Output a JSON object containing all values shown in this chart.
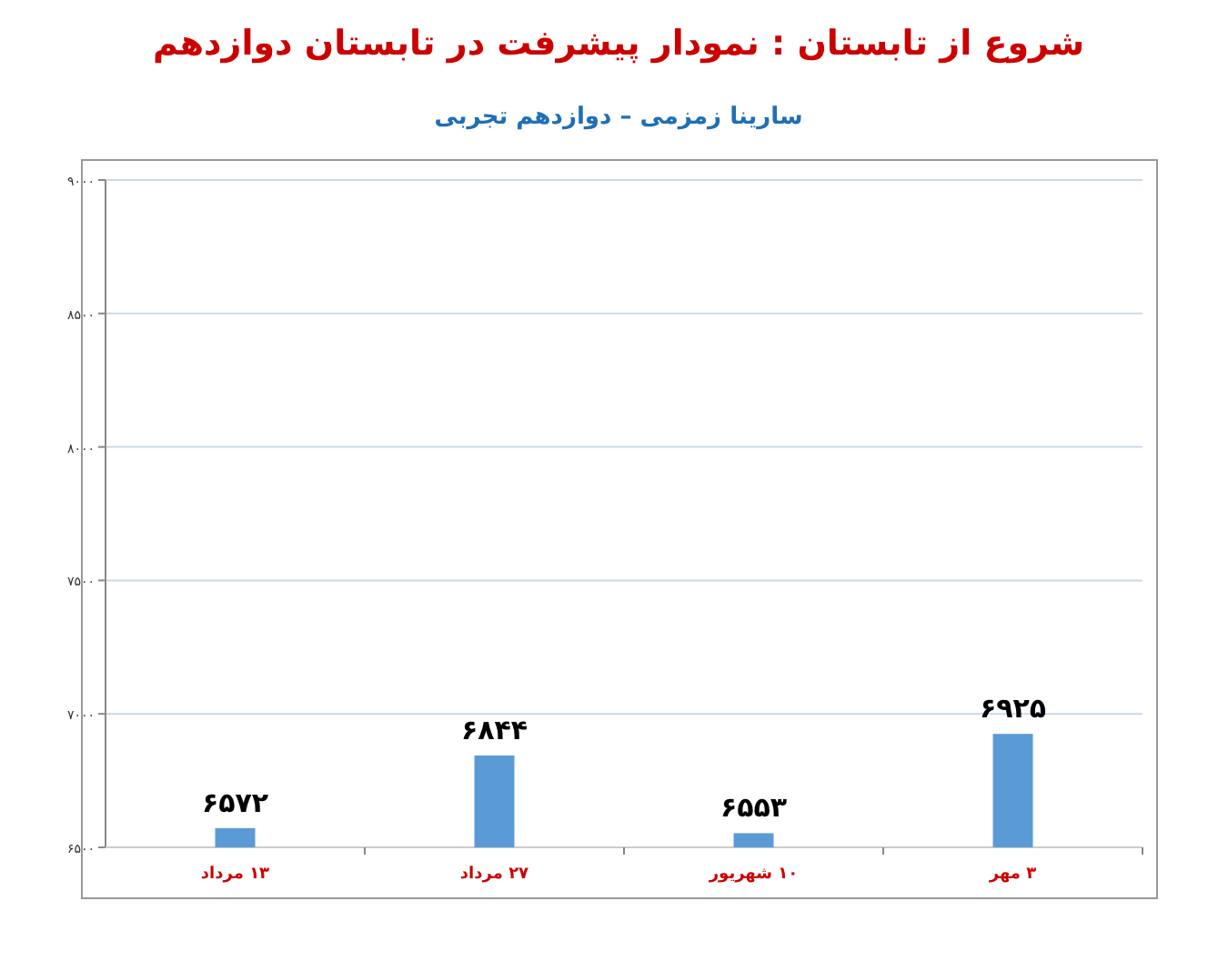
{
  "chart_data": {
    "type": "bar",
    "title": "شروع از تابستان : نمودار پیشرفت در تابستان دوازدهم",
    "subtitle": "سارینا زمزمی – دوازدهم تجربی",
    "categories": [
      "۱۳ مرداد",
      "۲۷ مرداد",
      "۱۰ شهریور",
      "۳ مهر"
    ],
    "values": [
      6572,
      6844,
      6553,
      6925
    ],
    "value_labels": [
      "۶۵۷۲",
      "۶۸۴۴",
      "۶۵۵۳",
      "۶۹۲۵"
    ],
    "color": "#5b9bd5",
    "ylim": [
      6500,
      9000
    ],
    "yticks": [
      {
        "value": 6500,
        "label": "۶۵۰۰"
      },
      {
        "value": 7000,
        "label": "۷۰۰۰"
      },
      {
        "value": 7500,
        "label": "۷۵۰۰"
      },
      {
        "value": 8000,
        "label": "۸۰۰۰"
      },
      {
        "value": 8500,
        "label": "۸۵۰۰"
      },
      {
        "value": 9000,
        "label": "۹۰۰۰"
      }
    ],
    "grid": "y"
  }
}
